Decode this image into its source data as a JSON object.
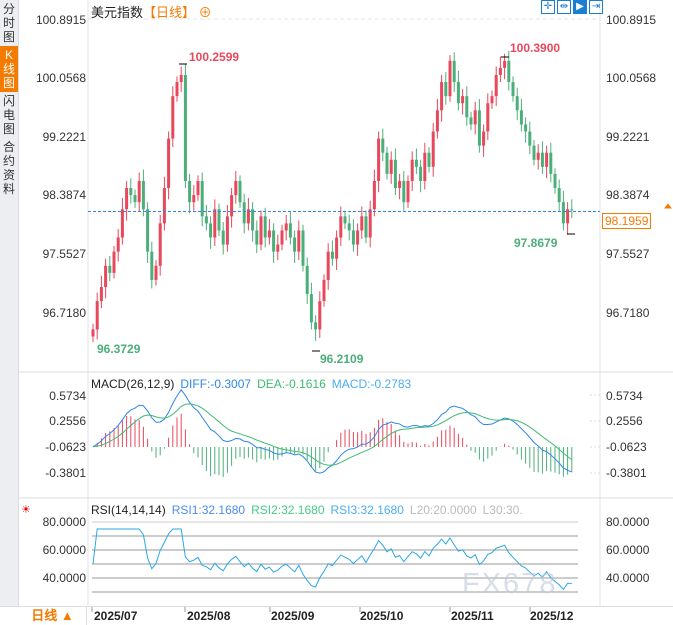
{
  "sidebar": {
    "tabs": [
      {
        "label": "分时图",
        "active": false
      },
      {
        "label": "K线图",
        "active": true
      },
      {
        "label": "闪电图",
        "active": false
      },
      {
        "label": "合约资料",
        "active": false
      }
    ]
  },
  "header": {
    "title": "美元指数",
    "period": "【日线】",
    "zoom_icon": "circle-plus-icon"
  },
  "toolbar": {
    "icons": [
      "crosshair-icon",
      "fit-range-icon",
      "scroll-right-icon",
      "jump-end-icon"
    ]
  },
  "price_panel": {
    "left_axis": [
      "100.8915",
      "100.0568",
      "99.2221",
      "98.3874",
      "97.5527",
      "96.7180"
    ],
    "right_axis": [
      "100.8915",
      "100.0568",
      "99.2221",
      "98.3874",
      "97.5527",
      "96.7180"
    ],
    "current_price": "98.1959",
    "annotations": {
      "high1": "100.2599",
      "high2": "100.3900",
      "low1": "96.3729",
      "low2": "96.2109",
      "low3": "97.8679"
    }
  },
  "macd_panel": {
    "label": "MACD(26,12,9)",
    "diff": "DIFF:-0.3007",
    "dea": "DEA:-0.1616",
    "macd": "MACD:-0.2783",
    "axis": [
      "0.5734",
      "0.2556",
      "-0.0623",
      "-0.3801"
    ]
  },
  "rsi_panel": {
    "label": "RSI(14,14,14)",
    "rsi1": "RSI1:32.1680",
    "rsi2": "RSI2:32.1680",
    "rsi3": "RSI3:32.1680",
    "l20": "L20:20.0000",
    "l30": "L30:30.",
    "axis": [
      "80.0000",
      "60.0000",
      "40.0000"
    ]
  },
  "bottom": {
    "period_button": "日线 ▲",
    "months": [
      "2025/07",
      "2025/08",
      "2025/09",
      "2025/10",
      "2025/11",
      "2025/12"
    ]
  },
  "watermark": "FX678",
  "colors": {
    "up": "#e8485c",
    "down": "#4caf7a",
    "diff": "#2f86e8",
    "dea": "#3dbb73",
    "rsi": "#2aa7e6",
    "accent": "#f57a00"
  },
  "chart_data": {
    "type": "candlestick",
    "title": "美元指数",
    "y_range": [
      96.718,
      100.8915
    ],
    "closes": [
      96.5,
      96.9,
      97.1,
      97.4,
      97.3,
      97.6,
      97.8,
      98.2,
      98.5,
      98.4,
      98.3,
      98.6,
      98.2,
      97.6,
      97.2,
      97.4,
      98.0,
      98.5,
      99.2,
      99.8,
      100.0,
      100.1,
      98.6,
      98.3,
      98.4,
      98.6,
      98.1,
      98.0,
      97.8,
      98.2,
      97.9,
      97.7,
      98.1,
      98.4,
      98.6,
      98.3,
      98.0,
      98.2,
      97.9,
      97.7,
      98.1,
      97.8,
      97.9,
      97.6,
      97.7,
      97.9,
      98.0,
      97.8,
      97.6,
      97.9,
      97.4,
      97.0,
      96.6,
      96.5,
      96.9,
      97.2,
      97.6,
      97.5,
      97.8,
      98.1,
      98.0,
      97.9,
      97.7,
      97.9,
      98.1,
      97.8,
      98.2,
      98.6,
      99.2,
      99.0,
      98.7,
      98.9,
      98.5,
      98.6,
      98.3,
      98.6,
      98.9,
      98.8,
      98.6,
      99.0,
      98.8,
      99.3,
      99.6,
      100.0,
      99.8,
      100.3,
      100.0,
      99.7,
      99.8,
      99.5,
      99.4,
      99.6,
      99.1,
      99.3,
      99.7,
      99.8,
      100.1,
      100.2,
      100.3,
      100.0,
      99.8,
      99.6,
      99.4,
      99.3,
      99.1,
      98.9,
      99.0,
      98.8,
      99.0,
      98.7,
      98.5,
      98.3,
      98.0,
      98.2,
      98.1959
    ]
  }
}
